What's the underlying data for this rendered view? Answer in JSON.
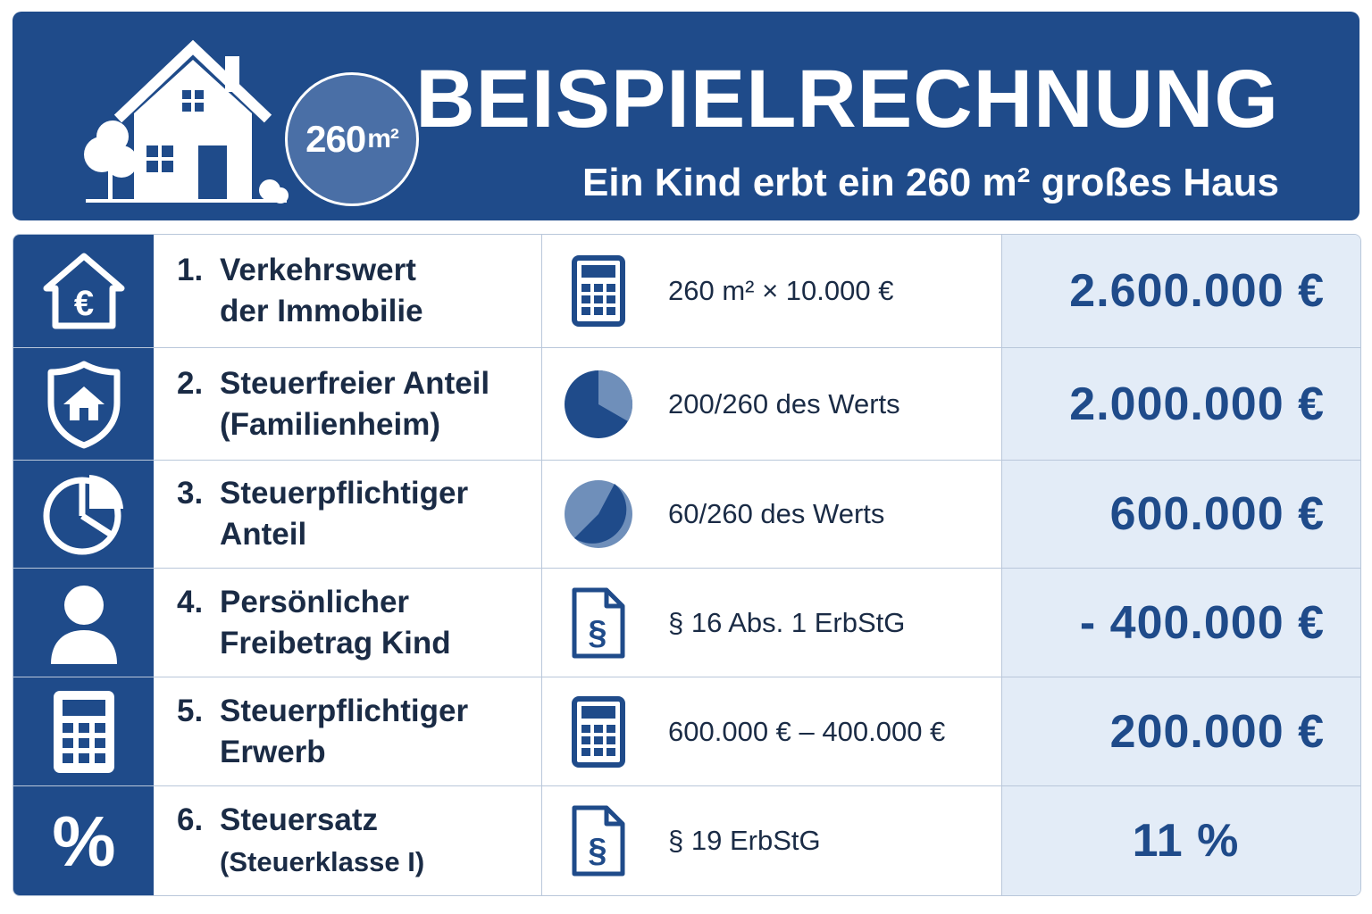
{
  "header": {
    "title": "BEISPIELRECHNUNG",
    "subtitle": "Ein Kind erbt ein 260 m² großes Haus",
    "badge_value": "260",
    "badge_unit": "m²"
  },
  "rows": [
    {
      "number": "1.",
      "label_line1": "Verkehrswert",
      "label_line2": "der Immobilie",
      "icon": "house-euro-icon",
      "formula_icon": "calculator-icon",
      "formula": "260 m² × 10.000 €",
      "value": "2.600.000 €"
    },
    {
      "number": "2.",
      "label_line1": "Steuerfreier Anteil",
      "label_line2": "(Familienheim)",
      "icon": "shield-house-icon",
      "formula_icon": "pie-chart-icon",
      "formula": "200/260 des Werts",
      "value": "2.000.000 €"
    },
    {
      "number": "3.",
      "label_line1": "Steuerpflichtiger",
      "label_line2": "Anteil",
      "icon": "pie-chart-icon",
      "formula_icon": "pie-chart-icon",
      "formula": "60/260 des Werts",
      "value": "600.000 €"
    },
    {
      "number": "4.",
      "label_line1": "Persönlicher",
      "label_line2": "Freibetrag Kind",
      "icon": "person-icon",
      "formula_icon": "document-paragraph-icon",
      "formula": "§ 16 Abs. 1 ErbStG",
      "value": "- 400.000 €"
    },
    {
      "number": "5.",
      "label_line1": "Steuerpflichtiger",
      "label_line2": "Erwerb",
      "icon": "calculator-icon",
      "formula_icon": "calculator-icon",
      "formula": "600.000 € – 400.000 €",
      "value": "200.000 €"
    },
    {
      "number": "6.",
      "label_line1": "Steuersatz",
      "label_line2": "(Steuerklasse I)",
      "icon": "percent-icon",
      "formula_icon": "document-paragraph-icon",
      "formula": "§ 19 ErbStG",
      "value": "11 %"
    }
  ],
  "colors": {
    "primary": "#1f4b8a",
    "value_bg": "#e3ecf7",
    "text": "#1a2b45"
  }
}
